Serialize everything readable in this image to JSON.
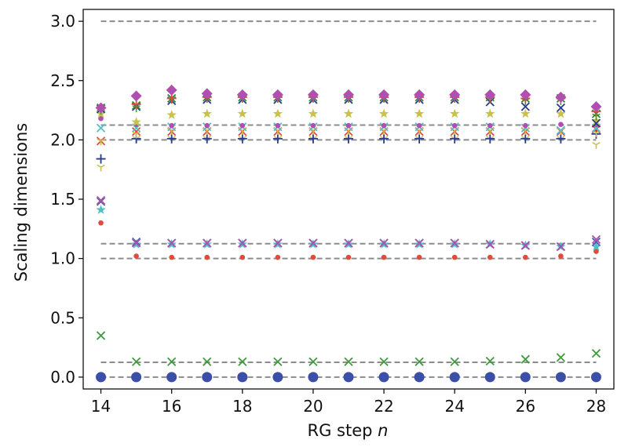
{
  "chart_data": {
    "type": "scatter",
    "xlabel": "RG step",
    "xlabel_var": "n",
    "ylabel": "Scaling dimensions",
    "xlim": [
      13.5,
      28.5
    ],
    "ylim": [
      -0.1,
      3.1
    ],
    "xticks": [
      14,
      16,
      18,
      20,
      22,
      24,
      26,
      28
    ],
    "yticks": [
      0.0,
      0.5,
      1.0,
      1.5,
      2.0,
      2.5,
      3.0
    ],
    "ytick_labels": [
      "0.0",
      "0.5",
      "1.0",
      "1.5",
      "2.0",
      "2.5",
      "3.0"
    ],
    "grid": false,
    "legend": "none",
    "reference_lines": {
      "color": "#8c8c8c",
      "style": "dashed",
      "y": [
        0.0,
        0.125,
        1.0,
        1.125,
        2.0,
        2.125,
        3.0
      ]
    },
    "x": [
      14,
      15,
      16,
      17,
      18,
      19,
      20,
      21,
      22,
      23,
      24,
      25,
      26,
      27,
      28
    ],
    "series": [
      {
        "color": "#3b4fa8",
        "marker": "circle-large",
        "values": [
          0,
          0,
          0,
          0,
          0,
          0,
          0,
          0,
          0,
          0,
          0,
          0,
          0,
          0,
          0
        ]
      },
      {
        "color": "#3f9a3f",
        "marker": "x",
        "values": [
          0.35,
          0.13,
          0.13,
          0.13,
          0.13,
          0.13,
          0.13,
          0.13,
          0.13,
          0.13,
          0.13,
          0.135,
          0.15,
          0.165,
          0.2
        ]
      },
      {
        "color": "#e04b3c",
        "marker": "dot",
        "values": [
          1.3,
          1.02,
          1.01,
          1.01,
          1.01,
          1.01,
          1.01,
          1.01,
          1.01,
          1.01,
          1.01,
          1.01,
          1.01,
          1.02,
          1.06
        ]
      },
      {
        "color": "#4fbfc8",
        "marker": "star",
        "values": [
          1.41,
          1.12,
          1.12,
          1.12,
          1.12,
          1.12,
          1.12,
          1.12,
          1.12,
          1.12,
          1.12,
          1.12,
          1.11,
          1.1,
          1.1
        ]
      },
      {
        "color": "#4a5fa8",
        "marker": "x",
        "values": [
          1.48,
          1.14,
          1.13,
          1.13,
          1.13,
          1.13,
          1.13,
          1.13,
          1.13,
          1.13,
          1.13,
          1.12,
          1.11,
          1.1,
          1.14
        ]
      },
      {
        "color": "#b04fb0",
        "marker": "x",
        "values": [
          1.49,
          1.13,
          1.13,
          1.13,
          1.13,
          1.13,
          1.13,
          1.13,
          1.13,
          1.13,
          1.13,
          1.12,
          1.11,
          1.1,
          1.16
        ]
      },
      {
        "color": "#c9c24a",
        "marker": "tri-down",
        "values": [
          1.77,
          2.01,
          2.01,
          2.01,
          2.01,
          2.01,
          2.01,
          2.01,
          2.01,
          2.01,
          2.01,
          2.01,
          2.01,
          2.01,
          1.96
        ]
      },
      {
        "color": "#2a3a8c",
        "marker": "plus",
        "values": [
          1.84,
          2.01,
          2.01,
          2.01,
          2.01,
          2.01,
          2.01,
          2.01,
          2.01,
          2.01,
          2.01,
          2.01,
          2.01,
          2.01,
          2.05
        ]
      },
      {
        "color": "#e04b3c",
        "marker": "x",
        "values": [
          1.99,
          2.07,
          2.07,
          2.07,
          2.07,
          2.07,
          2.07,
          2.07,
          2.07,
          2.07,
          2.07,
          2.07,
          2.07,
          2.07,
          2.09
        ]
      },
      {
        "color": "#c9c24a",
        "marker": "tri-down",
        "values": [
          1.99,
          2.05,
          2.08,
          2.08,
          2.08,
          2.08,
          2.08,
          2.08,
          2.08,
          2.08,
          2.08,
          2.08,
          2.08,
          2.08,
          2.06
        ]
      },
      {
        "color": "#4fbfc8",
        "marker": "x",
        "values": [
          2.1,
          2.1,
          2.11,
          2.11,
          2.11,
          2.11,
          2.11,
          2.11,
          2.11,
          2.11,
          2.11,
          2.11,
          2.1,
          2.08,
          2.1
        ]
      },
      {
        "color": "#b04fb0",
        "marker": "dot",
        "values": [
          2.18,
          2.13,
          2.12,
          2.12,
          2.12,
          2.12,
          2.12,
          2.12,
          2.12,
          2.12,
          2.12,
          2.12,
          2.12,
          2.13,
          2.13
        ]
      },
      {
        "color": "#c9c24a",
        "marker": "star",
        "values": [
          2.22,
          2.15,
          2.21,
          2.22,
          2.22,
          2.22,
          2.22,
          2.22,
          2.22,
          2.22,
          2.22,
          2.22,
          2.22,
          2.22,
          2.16
        ]
      },
      {
        "color": "#2a3a8c",
        "marker": "x",
        "values": [
          2.26,
          2.28,
          2.33,
          2.34,
          2.34,
          2.34,
          2.34,
          2.34,
          2.34,
          2.34,
          2.34,
          2.32,
          2.28,
          2.27,
          2.14
        ]
      },
      {
        "color": "#3f9a3f",
        "marker": "tri-down",
        "values": [
          2.25,
          2.27,
          2.34,
          2.35,
          2.35,
          2.35,
          2.35,
          2.35,
          2.35,
          2.35,
          2.35,
          2.35,
          2.33,
          2.33,
          2.2
        ]
      },
      {
        "color": "#2e8b2e",
        "marker": "x",
        "values": [
          2.27,
          2.29,
          2.35,
          2.36,
          2.36,
          2.36,
          2.36,
          2.36,
          2.36,
          2.36,
          2.36,
          2.36,
          2.35,
          2.35,
          2.22
        ]
      },
      {
        "color": "#e04b3c",
        "marker": "plus",
        "values": [
          2.27,
          2.3,
          2.35,
          2.36,
          2.36,
          2.36,
          2.36,
          2.36,
          2.36,
          2.36,
          2.36,
          2.36,
          2.35,
          2.35,
          2.24
        ]
      },
      {
        "color": "#b04fb0",
        "marker": "diamond",
        "values": [
          2.27,
          2.37,
          2.42,
          2.39,
          2.38,
          2.38,
          2.38,
          2.38,
          2.38,
          2.38,
          2.38,
          2.38,
          2.38,
          2.36,
          2.28
        ]
      }
    ]
  }
}
